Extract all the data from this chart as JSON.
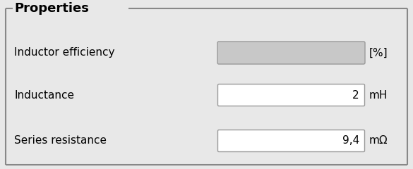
{
  "title": "Properties",
  "bg_color": "#e8e8e8",
  "title_color": "#000000",
  "title_fontsize": 13,
  "label_fontsize": 11,
  "value_fontsize": 11,
  "unit_fontsize": 11,
  "rows": [
    {
      "label": "Inductor efficiency",
      "value": "",
      "unit": "[%]",
      "box_color": "#c8c8c8",
      "box_edgecolor": "#999999"
    },
    {
      "label": "Inductance",
      "value": "2",
      "unit": "mH",
      "box_color": "#ffffff",
      "box_edgecolor": "#999999"
    },
    {
      "label": "Series resistance",
      "value": "9,4",
      "unit": "mΩ",
      "box_color": "#ffffff",
      "box_edgecolor": "#999999"
    }
  ],
  "border_color": "#888888",
  "line_color": "#888888",
  "fig_width": 5.85,
  "fig_height": 2.4,
  "dpi": 100
}
